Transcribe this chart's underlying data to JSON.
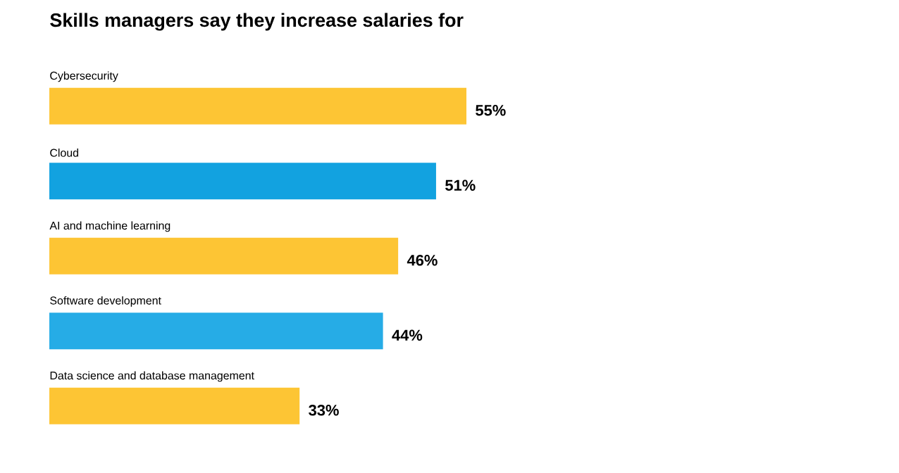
{
  "chart_data": {
    "type": "bar",
    "orientation": "horizontal",
    "title": "Skills managers say they increase salaries for",
    "categories": [
      "Cybersecurity",
      "Cloud",
      "AI and machine learning",
      "Software development",
      "Data science and database management"
    ],
    "values": [
      55,
      51,
      46,
      44,
      33
    ],
    "value_labels": [
      "55%",
      "51%",
      "46%",
      "44%",
      "33%"
    ],
    "colors": [
      "#fdc534",
      "#12a2e0",
      "#fdc534",
      "#26ace6",
      "#fdc534"
    ]
  }
}
